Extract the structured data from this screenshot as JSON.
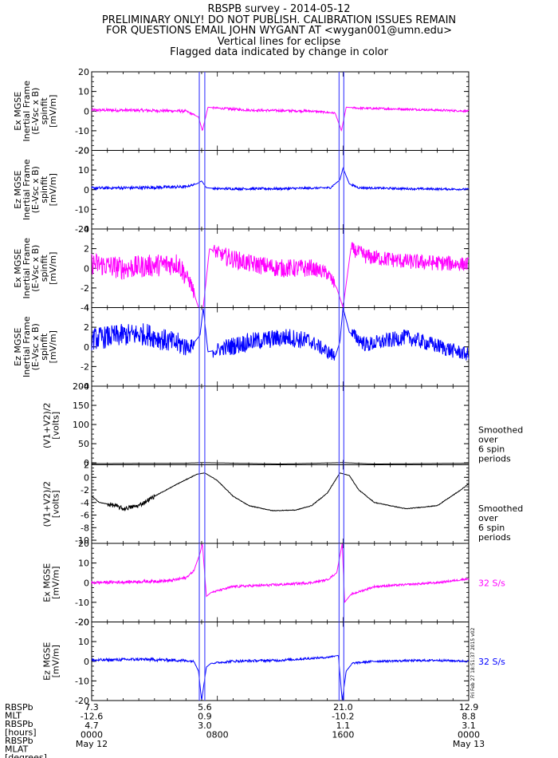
{
  "header": {
    "title": "RBSPB survey - 2014-05-12",
    "line2": "PRELIMINARY ONLY! DO NOT PUBLISH. CALIBRATION ISSUES REMAIN",
    "line3": "FOR QUESTIONS EMAIL JOHN WYGANT AT <wygan001@umn.edu>",
    "line4": "Vertical lines for eclipse",
    "line5": "Flagged data indicated by change in color"
  },
  "colors": {
    "magenta": "#ff00ff",
    "blue": "#0000ff",
    "black": "#000000",
    "eclipse": "#5555ff"
  },
  "chart_data": {
    "type": "line",
    "x_range_hours": [
      0,
      24
    ],
    "x_ticks": [
      {
        "h": 0,
        "label": "0000",
        "date": "May 12"
      },
      {
        "h": 8,
        "label": "0800",
        "date": ""
      },
      {
        "h": 16,
        "label": "1600",
        "date": ""
      },
      {
        "h": 24,
        "label": "0000",
        "date": "May 13"
      }
    ],
    "eclipse_lines_hours": [
      6.85,
      7.2,
      15.75,
      16.05
    ],
    "orbit_rows": {
      "labels": [
        "RBSPb",
        "MLT",
        "RBSPb",
        "[hours]",
        "RBSPb",
        "MLAT",
        "[degrees]"
      ],
      "values": [
        {
          "h": 0,
          "vals": [
            "7.3",
            "-12.6",
            "4.7"
          ]
        },
        {
          "h": 7.2,
          "vals": [
            "5.6",
            "0.9",
            "3.0"
          ]
        },
        {
          "h": 16.0,
          "vals": [
            "21.0",
            "-10.2",
            "1.1"
          ]
        },
        {
          "h": 24,
          "vals": [
            "12.9",
            "8.8",
            "3.1"
          ]
        }
      ]
    },
    "panels": [
      {
        "name": "ex-inertial-wide",
        "ylabel": [
          "Ex MGSE",
          "Inertial Frame",
          "(E-Vsc x B)",
          "spinfit",
          "[mV/m]"
        ],
        "yticks": [
          20,
          10,
          0,
          -10,
          -20
        ],
        "ylim": [
          -20,
          20
        ],
        "color": "#ff00ff",
        "kind": "ex",
        "side_label": "",
        "side_color": "#000000",
        "series": [
          {
            "x": [
              0,
              3,
              6,
              6.8,
              7.05,
              7.4,
              8,
              10,
              14,
              15.5,
              15.9,
              16.2,
              17,
              20,
              24
            ],
            "y": [
              0.5,
              0.4,
              0,
              -3,
              -10,
              2,
              1.5,
              0.5,
              0,
              -1,
              -10,
              2,
              1.5,
              1,
              0
            ]
          }
        ]
      },
      {
        "name": "ez-inertial-wide",
        "ylabel": [
          "Ez MGSE",
          "Inertial Frame",
          "(E-Vsc x B)",
          "spinfit",
          "[mV/m]"
        ],
        "yticks": [
          20,
          10,
          0,
          -10,
          -20
        ],
        "ylim": [
          -20,
          20
        ],
        "color": "#0000ff",
        "kind": "ez",
        "side_label": "",
        "side_color": "#000000",
        "series": [
          {
            "x": [
              0,
              3,
              6,
              6.7,
              7.0,
              7.3,
              8,
              12,
              15.2,
              15.8,
              16.0,
              16.4,
              17,
              20,
              24
            ],
            "y": [
              0.8,
              1,
              1.5,
              3,
              4.5,
              1,
              0.5,
              0.5,
              1,
              5,
              11,
              3,
              1,
              0.5,
              0.2
            ]
          }
        ]
      },
      {
        "name": "ex-inertial-zoom",
        "ylabel": [
          "Ex MGSE",
          "Inertial Frame",
          "(E-Vsc x B)",
          "spinfit",
          "[mV/m]"
        ],
        "yticks": [
          4,
          2,
          0,
          -2,
          -4
        ],
        "ylim": [
          -4,
          4
        ],
        "color": "#ff00ff",
        "kind": "ex",
        "side_label": "",
        "side_color": "#000000",
        "series": [
          {
            "x": [
              0,
              2,
              4,
              5.5,
              6.3,
              6.8,
              7.1,
              7.5,
              8.5,
              10,
              12,
              14,
              15,
              15.6,
              16,
              16.5,
              17.5,
              20,
              24
            ],
            "y": [
              0.5,
              0,
              0.3,
              0.5,
              -1.5,
              -4,
              -4,
              2,
              1.2,
              0.5,
              0,
              0,
              -0.5,
              -2,
              -4,
              2,
              1.2,
              0.7,
              0.4
            ]
          }
        ]
      },
      {
        "name": "ez-inertial-zoom",
        "ylabel": [
          "Ez MGSE",
          "Inertial Frame",
          "(E-Vsc x B)",
          "spinfit",
          "[mV/m]"
        ],
        "yticks": [
          4,
          2,
          0,
          -2,
          -4
        ],
        "ylim": [
          -4,
          4
        ],
        "color": "#0000ff",
        "kind": "ez",
        "side_label": "",
        "side_color": "#000000",
        "series": [
          {
            "x": [
              0,
              2,
              3.5,
              5,
              6.3,
              6.9,
              7.1,
              7.4,
              8,
              10,
              12.5,
              14,
              15.5,
              15.8,
              16.0,
              16.4,
              17.5,
              20,
              24
            ],
            "y": [
              0.8,
              1.2,
              1.3,
              0.5,
              0,
              1.2,
              4,
              -0.5,
              -0.3,
              0.5,
              1,
              0.5,
              -1,
              0.5,
              4,
              1.5,
              0.2,
              1,
              -0.8
            ]
          }
        ]
      },
      {
        "name": "vsc-potential-wide",
        "ylabel": [
          "(V1+V2)/2",
          "[volts]"
        ],
        "yticks": [
          200,
          150,
          100,
          50,
          0
        ],
        "ylim": [
          -5,
          200
        ],
        "color": "#000000",
        "kind": "v",
        "side_label": [
          "Smoothed",
          "over",
          "6 spin",
          "periods"
        ],
        "side_color": "#000000",
        "series": [
          {
            "x": [
              0,
              6,
              7,
              12,
              16,
              18,
              24
            ],
            "y": [
              -2,
              -1,
              0.5,
              -3,
              0.5,
              -3,
              -1
            ]
          }
        ]
      },
      {
        "name": "vsc-potential-zoom",
        "ylabel": [
          "(V1+V2)/2",
          "[volts]"
        ],
        "yticks": [
          2,
          0,
          -2,
          -4,
          -6,
          -8,
          -10
        ],
        "ylim": [
          -10.5,
          2
        ],
        "color": "#000000",
        "kind": "v",
        "side_label": [
          "Smoothed",
          "over",
          "6 spin",
          "periods"
        ],
        "side_color": "#000000",
        "series": [
          {
            "x": [
              0,
              0.5,
              1.5,
              2,
              3.0,
              4,
              5.5,
              6.7,
              7.2,
              8,
              9,
              10,
              11.5,
              13,
              14,
              15,
              15.8,
              16.4,
              17,
              18,
              20,
              22,
              23.5,
              24
            ],
            "y": [
              -3,
              -4,
              -4.5,
              -5,
              -4.5,
              -3,
              -1,
              0.5,
              0.7,
              -0.5,
              -3,
              -4.5,
              -5.3,
              -5.2,
              -4.5,
              -2.5,
              0.7,
              0.3,
              -2,
              -4,
              -5,
              -4.5,
              -2,
              -1
            ]
          }
        ]
      },
      {
        "name": "ex-mgse",
        "ylabel": [
          "Ex MGSE",
          "[mV/m]"
        ],
        "yticks": [
          20,
          10,
          0,
          -10,
          -20
        ],
        "ylim": [
          -20,
          20
        ],
        "color": "#ff00ff",
        "kind": "ex",
        "side_label": [
          "32 S/s"
        ],
        "side_color": "#ff00ff",
        "series": [
          {
            "x": [
              0,
              3,
              5,
              6,
              6.5,
              6.9,
              7.05,
              7.3,
              7.6,
              9,
              12,
              14,
              15,
              15.6,
              15.95,
              16.1,
              16.5,
              18,
              22,
              24
            ],
            "y": [
              0,
              0.5,
              1,
              2.5,
              6,
              15,
              20,
              -7,
              -5,
              -2,
              -1,
              0,
              1.5,
              5,
              20,
              -10,
              -6,
              -2,
              0,
              2
            ]
          }
        ]
      },
      {
        "name": "ez-mgse",
        "ylabel": [
          "Ez MGSE",
          "[mV/m]"
        ],
        "yticks": [
          20,
          10,
          0,
          -10,
          -20
        ],
        "ylim": [
          -20,
          20
        ],
        "color": "#0000ff",
        "kind": "ez",
        "side_label": [
          "32 S/s"
        ],
        "side_color": "#0000ff",
        "series": [
          {
            "x": [
              0,
              3,
              5.5,
              6.5,
              6.8,
              7.0,
              7.3,
              7.6,
              9,
              12,
              15,
              15.7,
              15.95,
              16.2,
              16.6,
              18,
              22,
              24
            ],
            "y": [
              0.5,
              1,
              0.5,
              0,
              -5,
              -20,
              -3,
              -1,
              0,
              0.5,
              2,
              3,
              -20,
              -5,
              -1,
              0,
              0.5,
              0
            ]
          }
        ]
      }
    ],
    "footer_text": "Fri Feb 27 18:51:37 2015 v02"
  }
}
